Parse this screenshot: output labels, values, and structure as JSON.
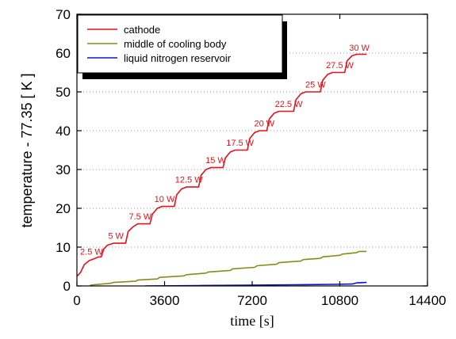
{
  "chart_data": {
    "type": "line",
    "xlabel": "time [s]",
    "ylabel": "temperature - 77.35 [ K ]",
    "xlim": [
      0,
      14400
    ],
    "ylim": [
      0,
      70
    ],
    "xticks": [
      0,
      3600,
      7200,
      10800,
      14400
    ],
    "xtick_labels": [
      "0",
      "3600",
      "7200",
      "10800",
      "14400"
    ],
    "yticks": [
      0,
      10,
      20,
      30,
      40,
      50,
      60,
      70
    ],
    "ytick_labels": [
      "0",
      "10",
      "20",
      "30",
      "40",
      "50",
      "60",
      "70"
    ],
    "grid": "horizontal dotted",
    "legend_position": "top-left",
    "series": [
      {
        "name": "cathode",
        "color": "#e8101a",
        "points": [
          [
            0,
            2.5
          ],
          [
            150,
            3.5
          ],
          [
            300,
            5.5
          ],
          [
            500,
            6.5
          ],
          [
            700,
            7
          ],
          [
            900,
            7.5
          ],
          [
            1000,
            7.5
          ],
          [
            1100,
            9.5
          ],
          [
            1250,
            10.5
          ],
          [
            1500,
            11
          ],
          [
            2000,
            11
          ],
          [
            2100,
            14
          ],
          [
            2300,
            15.2
          ],
          [
            2500,
            16
          ],
          [
            3000,
            16
          ],
          [
            3100,
            18.5
          ],
          [
            3300,
            20
          ],
          [
            3500,
            20.5
          ],
          [
            4000,
            20.5
          ],
          [
            4100,
            23.5
          ],
          [
            4300,
            25
          ],
          [
            4500,
            25.5
          ],
          [
            5000,
            25.5
          ],
          [
            5100,
            28.5
          ],
          [
            5300,
            30
          ],
          [
            5500,
            30.5
          ],
          [
            6000,
            30.5
          ],
          [
            6100,
            33
          ],
          [
            6300,
            34.5
          ],
          [
            6500,
            35
          ],
          [
            7000,
            35
          ],
          [
            7100,
            38
          ],
          [
            7300,
            39.5
          ],
          [
            7500,
            40
          ],
          [
            7800,
            40
          ],
          [
            7900,
            43
          ],
          [
            8100,
            44.5
          ],
          [
            8300,
            45
          ],
          [
            8900,
            45
          ],
          [
            9000,
            48
          ],
          [
            9200,
            49.5
          ],
          [
            9400,
            50
          ],
          [
            10000,
            50
          ],
          [
            10100,
            53
          ],
          [
            10300,
            54.5
          ],
          [
            10500,
            55
          ],
          [
            11000,
            55
          ],
          [
            11100,
            58
          ],
          [
            11300,
            59.3
          ],
          [
            11500,
            59.7
          ],
          [
            11900,
            59.7
          ]
        ]
      },
      {
        "name": "middle of cooling body",
        "color": "#8a8a1a",
        "points": [
          [
            550,
            0
          ],
          [
            560,
            0.2
          ],
          [
            700,
            0.3
          ],
          [
            1400,
            0.7
          ],
          [
            1500,
            0.9
          ],
          [
            2400,
            1.2
          ],
          [
            2500,
            1.5
          ],
          [
            3300,
            1.8
          ],
          [
            3400,
            2.2
          ],
          [
            4400,
            2.6
          ],
          [
            4500,
            2.9
          ],
          [
            5300,
            3.3
          ],
          [
            5400,
            3.6
          ],
          [
            6300,
            4
          ],
          [
            6400,
            4.4
          ],
          [
            7300,
            4.8
          ],
          [
            7400,
            5.2
          ],
          [
            8200,
            5.6
          ],
          [
            8300,
            6
          ],
          [
            9200,
            6.4
          ],
          [
            9300,
            6.8
          ],
          [
            10000,
            7.1
          ],
          [
            10100,
            7.5
          ],
          [
            10800,
            7.9
          ],
          [
            10900,
            8.2
          ],
          [
            11500,
            8.6
          ],
          [
            11600,
            8.9
          ],
          [
            11900,
            8.9
          ]
        ]
      },
      {
        "name": "liquid nitrogen reservoir",
        "color": "#1010d0",
        "points": [
          [
            2800,
            0
          ],
          [
            5000,
            0.1
          ],
          [
            7000,
            0.2
          ],
          [
            9000,
            0.3
          ],
          [
            10500,
            0.4
          ],
          [
            11300,
            0.5
          ],
          [
            11500,
            0.8
          ],
          [
            11900,
            0.9
          ]
        ]
      }
    ],
    "annotations": [
      {
        "text": "2.5 W",
        "x": 600,
        "y": 7.5
      },
      {
        "text": "5 W",
        "x": 1600,
        "y": 11.5
      },
      {
        "text": "7.5 W",
        "x": 2600,
        "y": 16.5
      },
      {
        "text": "10 W",
        "x": 3600,
        "y": 21
      },
      {
        "text": "12.5 W",
        "x": 4600,
        "y": 26
      },
      {
        "text": "15 W",
        "x": 5700,
        "y": 31
      },
      {
        "text": "17.5 W",
        "x": 6700,
        "y": 35.5
      },
      {
        "text": "20 W",
        "x": 7700,
        "y": 40.5
      },
      {
        "text": "22.5 W",
        "x": 8700,
        "y": 45.5
      },
      {
        "text": "25 W",
        "x": 9800,
        "y": 50.5
      },
      {
        "text": "27.5 W",
        "x": 10800,
        "y": 55.5
      },
      {
        "text": "30 W",
        "x": 11600,
        "y": 60
      }
    ]
  }
}
